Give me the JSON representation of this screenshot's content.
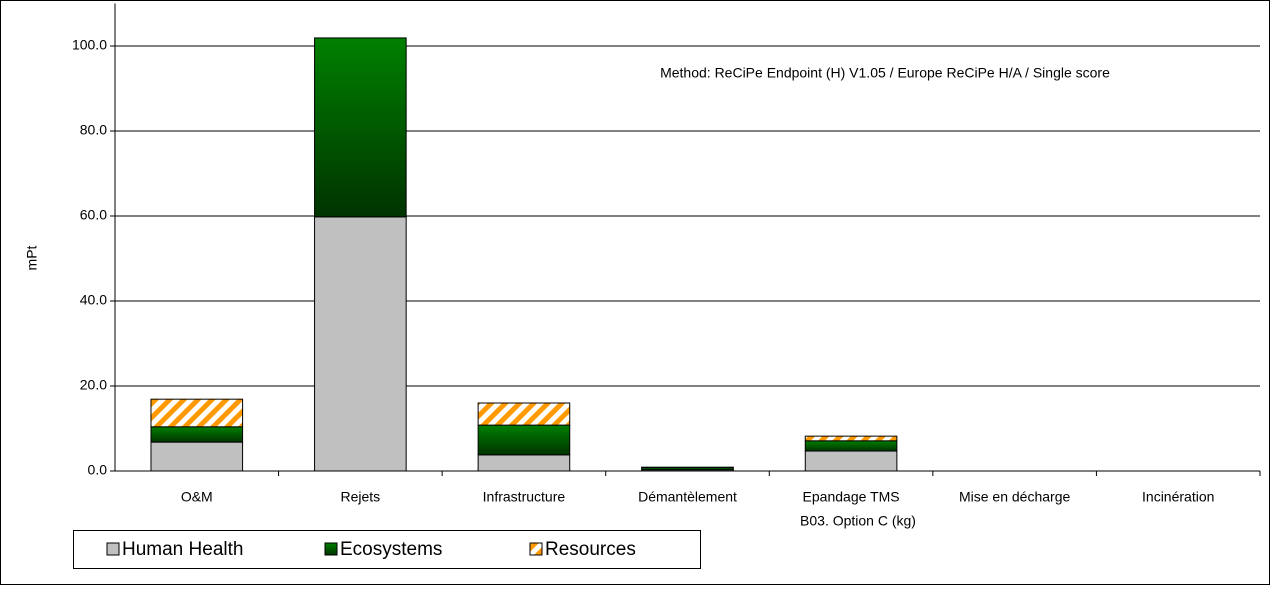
{
  "chart_data": {
    "type": "bar",
    "stacked": true,
    "annotation": "Method: ReCiPe Endpoint (H) V1.05 /  Europe ReCiPe H/A / Single score",
    "y_label": "mPt",
    "x_label": "B03. Option C (kg)",
    "categories": [
      "O&M",
      "Rejets",
      "Infrastructure",
      "Démantèlement",
      "Epandage TMS",
      "Mise en décharge",
      "Incinération"
    ],
    "series": [
      {
        "name": "Human Health",
        "color": "#c0c0c0",
        "values": [
          6.8,
          59.8,
          3.8,
          0.3,
          4.7,
          0,
          0
        ]
      },
      {
        "name": "Ecosystems",
        "color": "#008000",
        "gradient": true,
        "values": [
          3.6,
          42.1,
          7.0,
          0.5,
          2.4,
          0,
          0
        ]
      },
      {
        "name": "Resources",
        "color": "#ff9900",
        "pattern": "stripes",
        "values": [
          6.5,
          0,
          5.2,
          0.1,
          1.1,
          0,
          0
        ]
      }
    ],
    "ylim": [
      0,
      110
    ],
    "yticks": [
      {
        "value": 0,
        "label": "0.0"
      },
      {
        "value": 20,
        "label": "20.0"
      },
      {
        "value": 40,
        "label": "40.0"
      },
      {
        "value": 60,
        "label": "60.0"
      },
      {
        "value": 80,
        "label": "80.0"
      },
      {
        "value": 100,
        "label": "100.0"
      }
    ],
    "grid": true,
    "legend": "bottom-left"
  }
}
